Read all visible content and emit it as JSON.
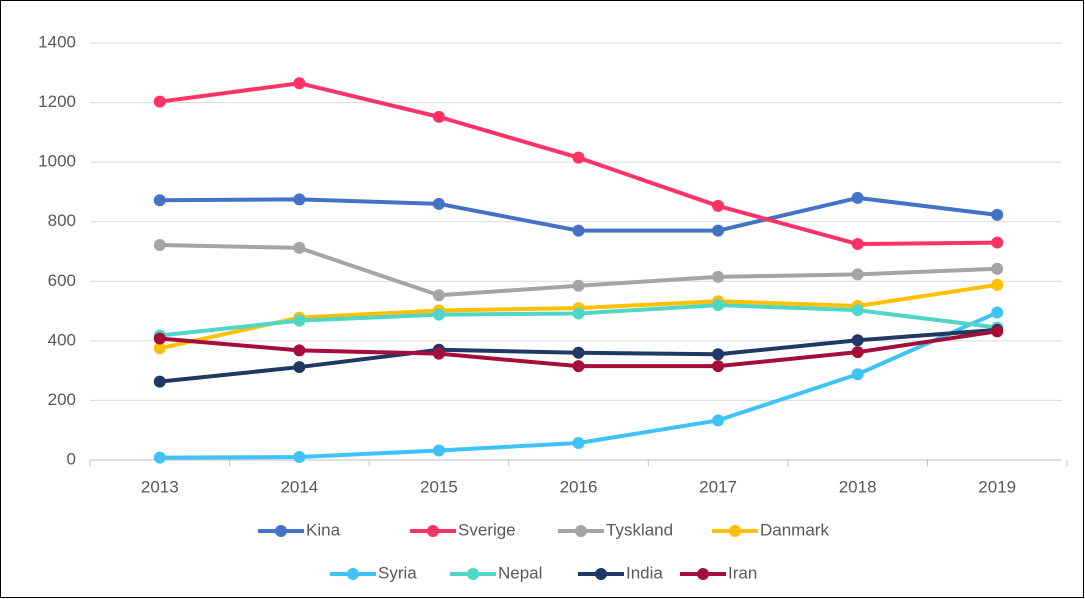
{
  "chart_data": {
    "type": "line",
    "categories": [
      "2013",
      "2014",
      "2015",
      "2016",
      "2017",
      "2018",
      "2019"
    ],
    "series": [
      {
        "name": "Kina",
        "color": "#4472c4",
        "values": [
          872,
          875,
          860,
          770,
          770,
          880,
          823
        ]
      },
      {
        "name": "Sverige",
        "color": "#ff3366",
        "values": [
          1203,
          1265,
          1152,
          1015,
          853,
          725,
          730
        ]
      },
      {
        "name": "Tyskland",
        "color": "#a5a5a5",
        "values": [
          722,
          712,
          553,
          585,
          615,
          623,
          642
        ]
      },
      {
        "name": "Danmark",
        "color": "#ffc000",
        "values": [
          375,
          478,
          502,
          510,
          533,
          517,
          588
        ]
      },
      {
        "name": "Syria",
        "color": "#3ec3f7",
        "values": [
          8,
          10,
          32,
          57,
          133,
          288,
          495
        ]
      },
      {
        "name": "Nepal",
        "color": "#4fd6c6",
        "values": [
          418,
          468,
          488,
          492,
          520,
          503,
          445
        ]
      },
      {
        "name": "India",
        "color": "#1f3864",
        "values": [
          263,
          312,
          370,
          360,
          355,
          402,
          437
        ]
      },
      {
        "name": "Iran",
        "color": "#a50d3a",
        "values": [
          408,
          368,
          357,
          315,
          315,
          362,
          432
        ]
      }
    ],
    "ylim": [
      0,
      1400
    ],
    "yticks": [
      0,
      200,
      400,
      600,
      800,
      1000,
      1200,
      1400
    ],
    "grid": true,
    "legend": "bottom"
  }
}
